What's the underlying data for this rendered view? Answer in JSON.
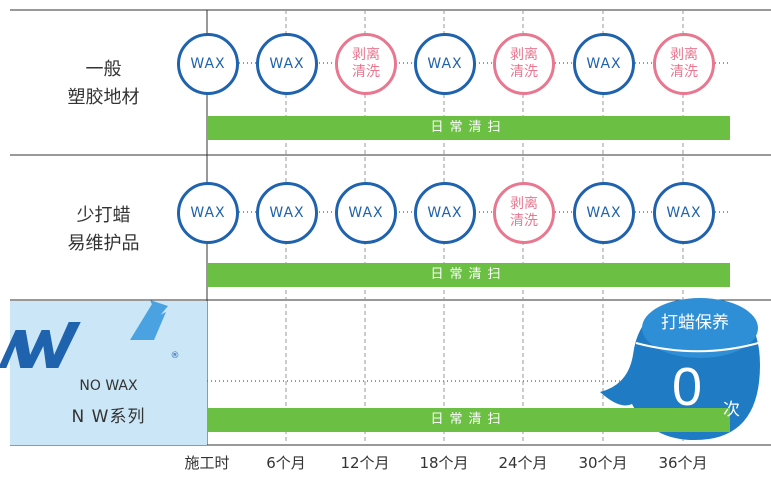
{
  "rows": [
    {
      "label_line1": "一般",
      "label_line2": "塑胶地材",
      "events": [
        "WAX",
        "WAX",
        "strip",
        "WAX",
        "strip",
        "WAX",
        "strip"
      ],
      "bar_label": "日常清扫"
    },
    {
      "label_line1": "少打蜡",
      "label_line2": "易维护品",
      "events": [
        "WAX",
        "WAX",
        "WAX",
        "WAX",
        "strip",
        "WAX",
        "WAX"
      ],
      "bar_label": "日常清扫"
    },
    {
      "brand_line1": "NO WAX",
      "brand_line2": "N W系列",
      "bar_label": "日常清扫"
    }
  ],
  "wax_label": "WAX",
  "strip_label_line1": "剥离",
  "strip_label_line2": "清洗",
  "registered_mark": "®",
  "x_axis": [
    "施工时",
    "6个月",
    "12个月",
    "18个月",
    "24个月",
    "30个月",
    "36个月"
  ],
  "badge": {
    "title": "打蜡保养",
    "value": "0",
    "unit": "次"
  },
  "colors": {
    "wax": "#1f62ad",
    "strip": "#e8778f",
    "bar": "#6bbf43",
    "badge": "#1f7cc4",
    "panel": "#cbe6f6"
  }
}
